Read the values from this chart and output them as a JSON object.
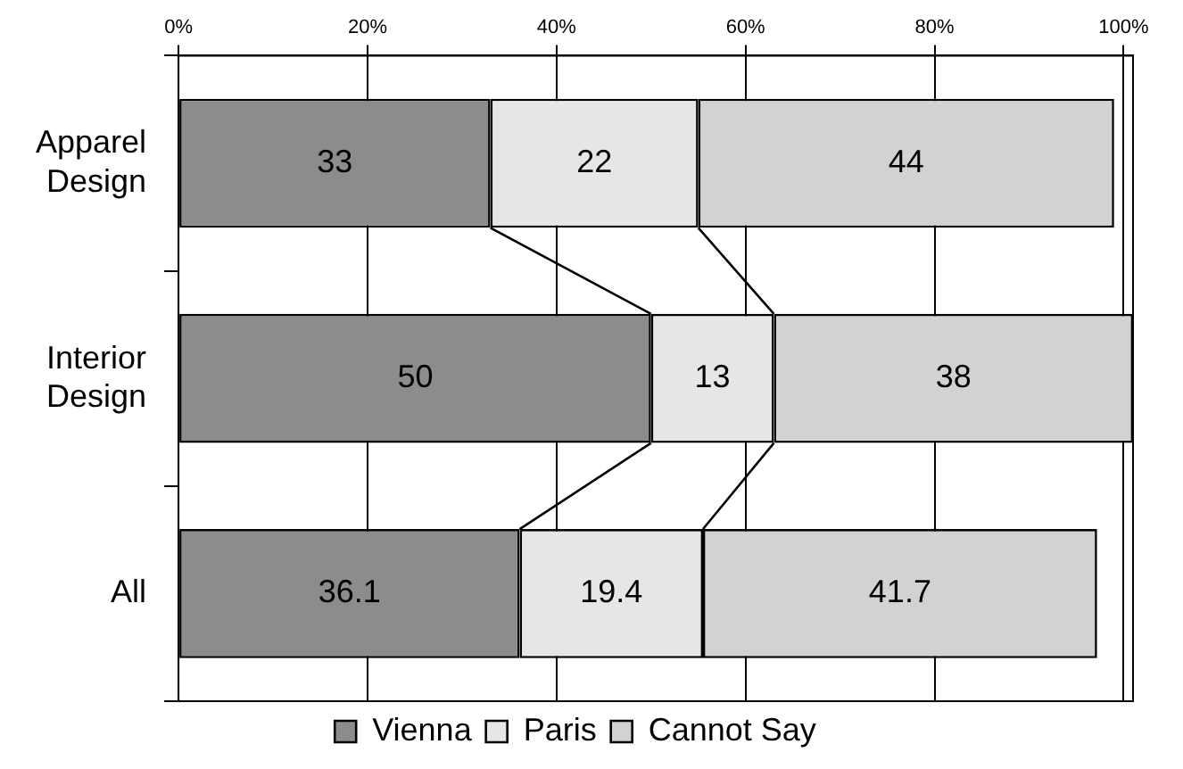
{
  "chart_data": {
    "type": "bar",
    "orientation": "horizontal",
    "stacked": true,
    "categories": [
      "Apparel Design",
      "Interior Design",
      "All"
    ],
    "series": [
      {
        "name": "Vienna",
        "color": "#8c8c8c",
        "values": [
          33,
          50,
          36.1
        ]
      },
      {
        "name": "Paris",
        "color": "#e6e6e6",
        "values": [
          22,
          13,
          19.4
        ]
      },
      {
        "name": "Cannot Say",
        "color": "#d2d2d2",
        "values": [
          44,
          38,
          41.7
        ]
      }
    ],
    "xlim": [
      0,
      101
    ],
    "xticks": [
      {
        "value": 0,
        "label": "0%"
      },
      {
        "value": 20,
        "label": "20%"
      },
      {
        "value": 40,
        "label": "40%"
      },
      {
        "value": 60,
        "label": "60%"
      },
      {
        "value": 80,
        "label": "80%"
      },
      {
        "value": 100,
        "label": "100%"
      }
    ],
    "grid": "x",
    "legend": "bottom",
    "data_labels": true
  }
}
